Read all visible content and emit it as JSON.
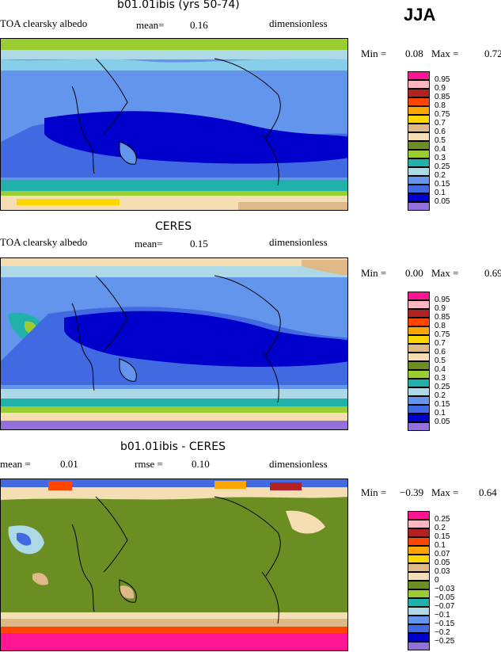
{
  "season": "JJA",
  "panels": [
    {
      "title": "b01.01ibis (yrs 50-74)",
      "left_label": "TOA clearsky albedo",
      "mean_label": "mean=",
      "mean_value": "0.16",
      "units": "dimensionless",
      "min_label": "Min =",
      "min_value": "0.08",
      "max_label": "Max =",
      "max_value": "0.72"
    },
    {
      "title": "CERES",
      "left_label": "TOA clearsky albedo",
      "mean_label": "mean=",
      "mean_value": "0.15",
      "units": "dimensionless",
      "min_label": "Min =",
      "min_value": "0.00",
      "max_label": "Max =",
      "max_value": "0.69"
    },
    {
      "title": "b01.01ibis - CERES",
      "mean_label": "mean =",
      "mean_value": "0.01",
      "rmse_label": "rmse =",
      "rmse_value": "0.10",
      "units": "dimensionless",
      "min_label": "Min =",
      "min_value": "−0.39",
      "max_label": "Max =",
      "max_value": "0.64"
    }
  ],
  "colorbar_abs": {
    "labels": [
      "0.95",
      "0.9",
      "0.85",
      "0.8",
      "0.75",
      "0.7",
      "0.6",
      "0.5",
      "0.4",
      "0.3",
      "0.25",
      "0.2",
      "0.15",
      "0.1",
      "0.05"
    ],
    "colors": [
      "#ff1493",
      "#ffb6c1",
      "#b22222",
      "#ff4500",
      "#ffa500",
      "#ffd700",
      "#deb887",
      "#f5deb3",
      "#6b8e23",
      "#9acd32",
      "#20b2aa",
      "#add8e6",
      "#6495ed",
      "#4169e1",
      "#0000cd",
      "#9370db"
    ]
  },
  "colorbar_diff": {
    "labels": [
      "0.25",
      "0.2",
      "0.15",
      "0.1",
      "0.07",
      "0.05",
      "0.03",
      "0",
      "−0.03",
      "−0.05",
      "−0.07",
      "−0.1",
      "−0.15",
      "−0.2",
      "−0.25"
    ],
    "colors": [
      "#ff1493",
      "#ffb6c1",
      "#b22222",
      "#ff4500",
      "#ffa500",
      "#ffd700",
      "#deb887",
      "#f5deb3",
      "#6b8e23",
      "#9acd32",
      "#20b2aa",
      "#add8e6",
      "#6495ed",
      "#4169e1",
      "#0000cd",
      "#9370db"
    ]
  },
  "chart_data": [
    {
      "type": "heatmap",
      "title": "b01.01ibis (yrs 50-74)",
      "variable": "TOA clearsky albedo",
      "season": "JJA",
      "mean": 0.16,
      "min": 0.08,
      "max": 0.72,
      "units": "dimensionless",
      "contour_levels": [
        0.05,
        0.1,
        0.15,
        0.2,
        0.25,
        0.3,
        0.4,
        0.5,
        0.6,
        0.7,
        0.75,
        0.8,
        0.85,
        0.9,
        0.95
      ]
    },
    {
      "type": "heatmap",
      "title": "CERES",
      "variable": "TOA clearsky albedo",
      "season": "JJA",
      "mean": 0.15,
      "min": 0.0,
      "max": 0.69,
      "units": "dimensionless",
      "contour_levels": [
        0.05,
        0.1,
        0.15,
        0.2,
        0.25,
        0.3,
        0.4,
        0.5,
        0.6,
        0.7,
        0.75,
        0.8,
        0.85,
        0.9,
        0.95
      ]
    },
    {
      "type": "heatmap",
      "title": "b01.01ibis - CERES",
      "season": "JJA",
      "mean": 0.01,
      "rmse": 0.1,
      "min": -0.39,
      "max": 0.64,
      "units": "dimensionless",
      "contour_levels": [
        -0.25,
        -0.2,
        -0.15,
        -0.1,
        -0.07,
        -0.05,
        -0.03,
        0,
        0.03,
        0.05,
        0.07,
        0.1,
        0.15,
        0.2,
        0.25
      ]
    }
  ]
}
